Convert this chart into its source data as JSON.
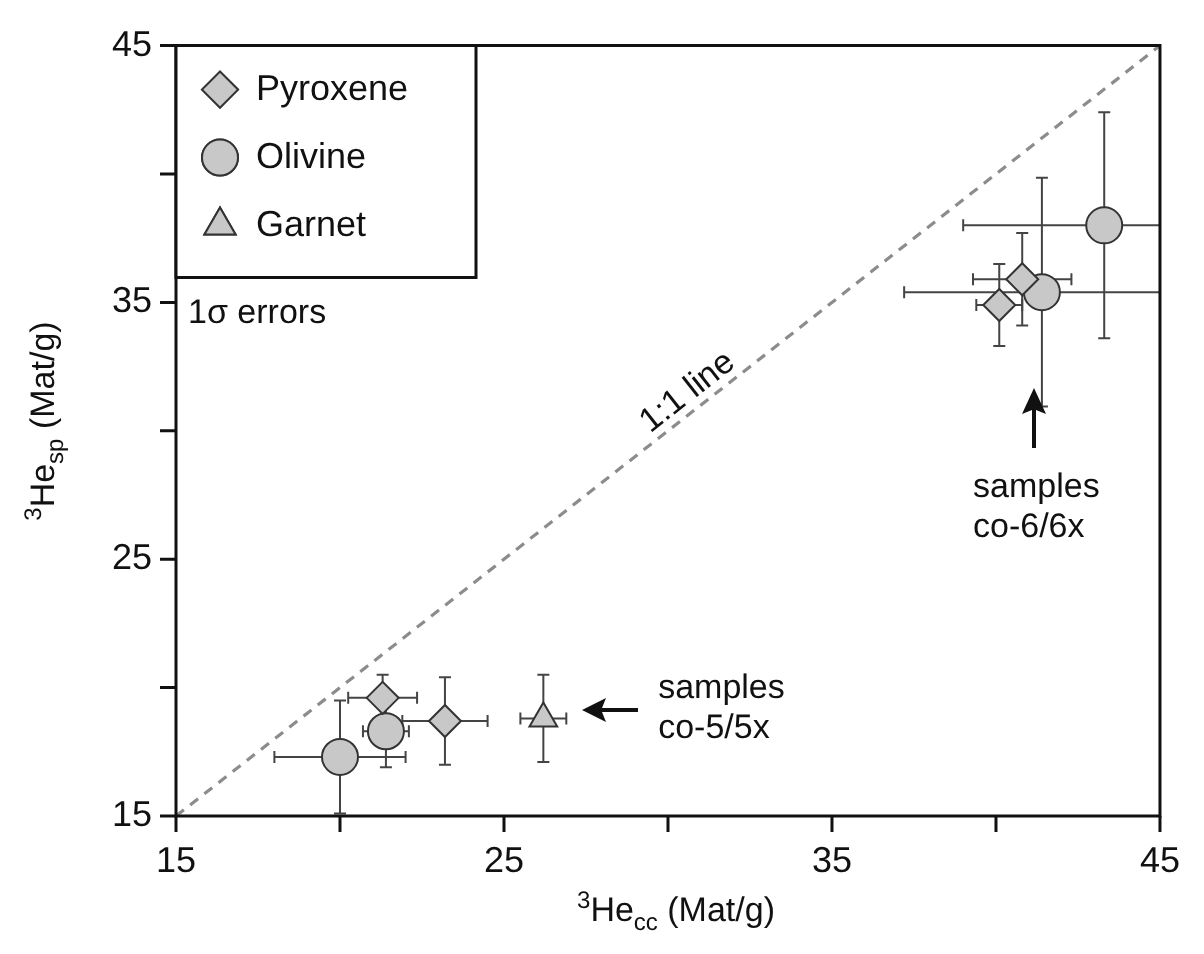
{
  "chart_data": {
    "type": "scatter",
    "xlabel": "$^{3}$He$_{cc}$ (Mat/g)",
    "ylabel": "$^{3}$He$_{sp}$ (Mat/g)",
    "xlim": [
      15,
      45
    ],
    "ylim": [
      15,
      45
    ],
    "xticks": [
      15,
      {
        "value": 20,
        "label": null
      },
      25,
      {
        "value": 30,
        "label": null
      },
      35,
      {
        "value": 40,
        "label": null
      },
      45
    ],
    "yticks": [
      15,
      {
        "value": 20,
        "label": null
      },
      25,
      {
        "value": 30,
        "label": null
      },
      35,
      {
        "value": 40,
        "label": null
      },
      45
    ],
    "grid": false,
    "legend": "top left",
    "series": [
      {
        "name": "Pyroxene",
        "color": "#c8c8c8",
        "marker": "diamond",
        "x": [
          21.3,
          23.2,
          40.8,
          40.1
        ],
        "values": [
          19.6,
          18.7,
          35.9,
          34.9
        ],
        "xerrors": [
          1.05,
          1.3,
          1.5,
          0.7
        ],
        "errors": [
          0.9,
          1.7,
          1.8,
          1.6
        ]
      },
      {
        "name": "Olivine",
        "color": "#c8c8c8",
        "marker": "circle",
        "x": [
          20.0,
          21.4,
          43.3,
          41.4
        ],
        "values": [
          17.3,
          18.3,
          38.0,
          35.4
        ],
        "xerrors": [
          2.0,
          0.7,
          [
            39.0,
            45
          ],
          [
            37.2,
            45
          ]
        ],
        "errors": [
          2.2,
          1.4,
          4.4,
          4.45
        ]
      },
      {
        "name": "Garnet",
        "color": "#c8c8c8",
        "marker": "triangle",
        "x": [
          26.2
        ],
        "values": [
          18.8
        ],
        "xerrors": [
          0.7
        ],
        "errors": [
          1.7
        ]
      },
      {
        "type": "line",
        "color": "#8c8c8c",
        "line_style": "dashed",
        "marker": "none",
        "x": [
          15,
          45
        ],
        "values": [
          15,
          45
        ]
      }
    ],
    "annotations": [
      "1σ errors",
      "1:1 line",
      "samples co-5/5x",
      "samples co-6/6x"
    ]
  }
}
